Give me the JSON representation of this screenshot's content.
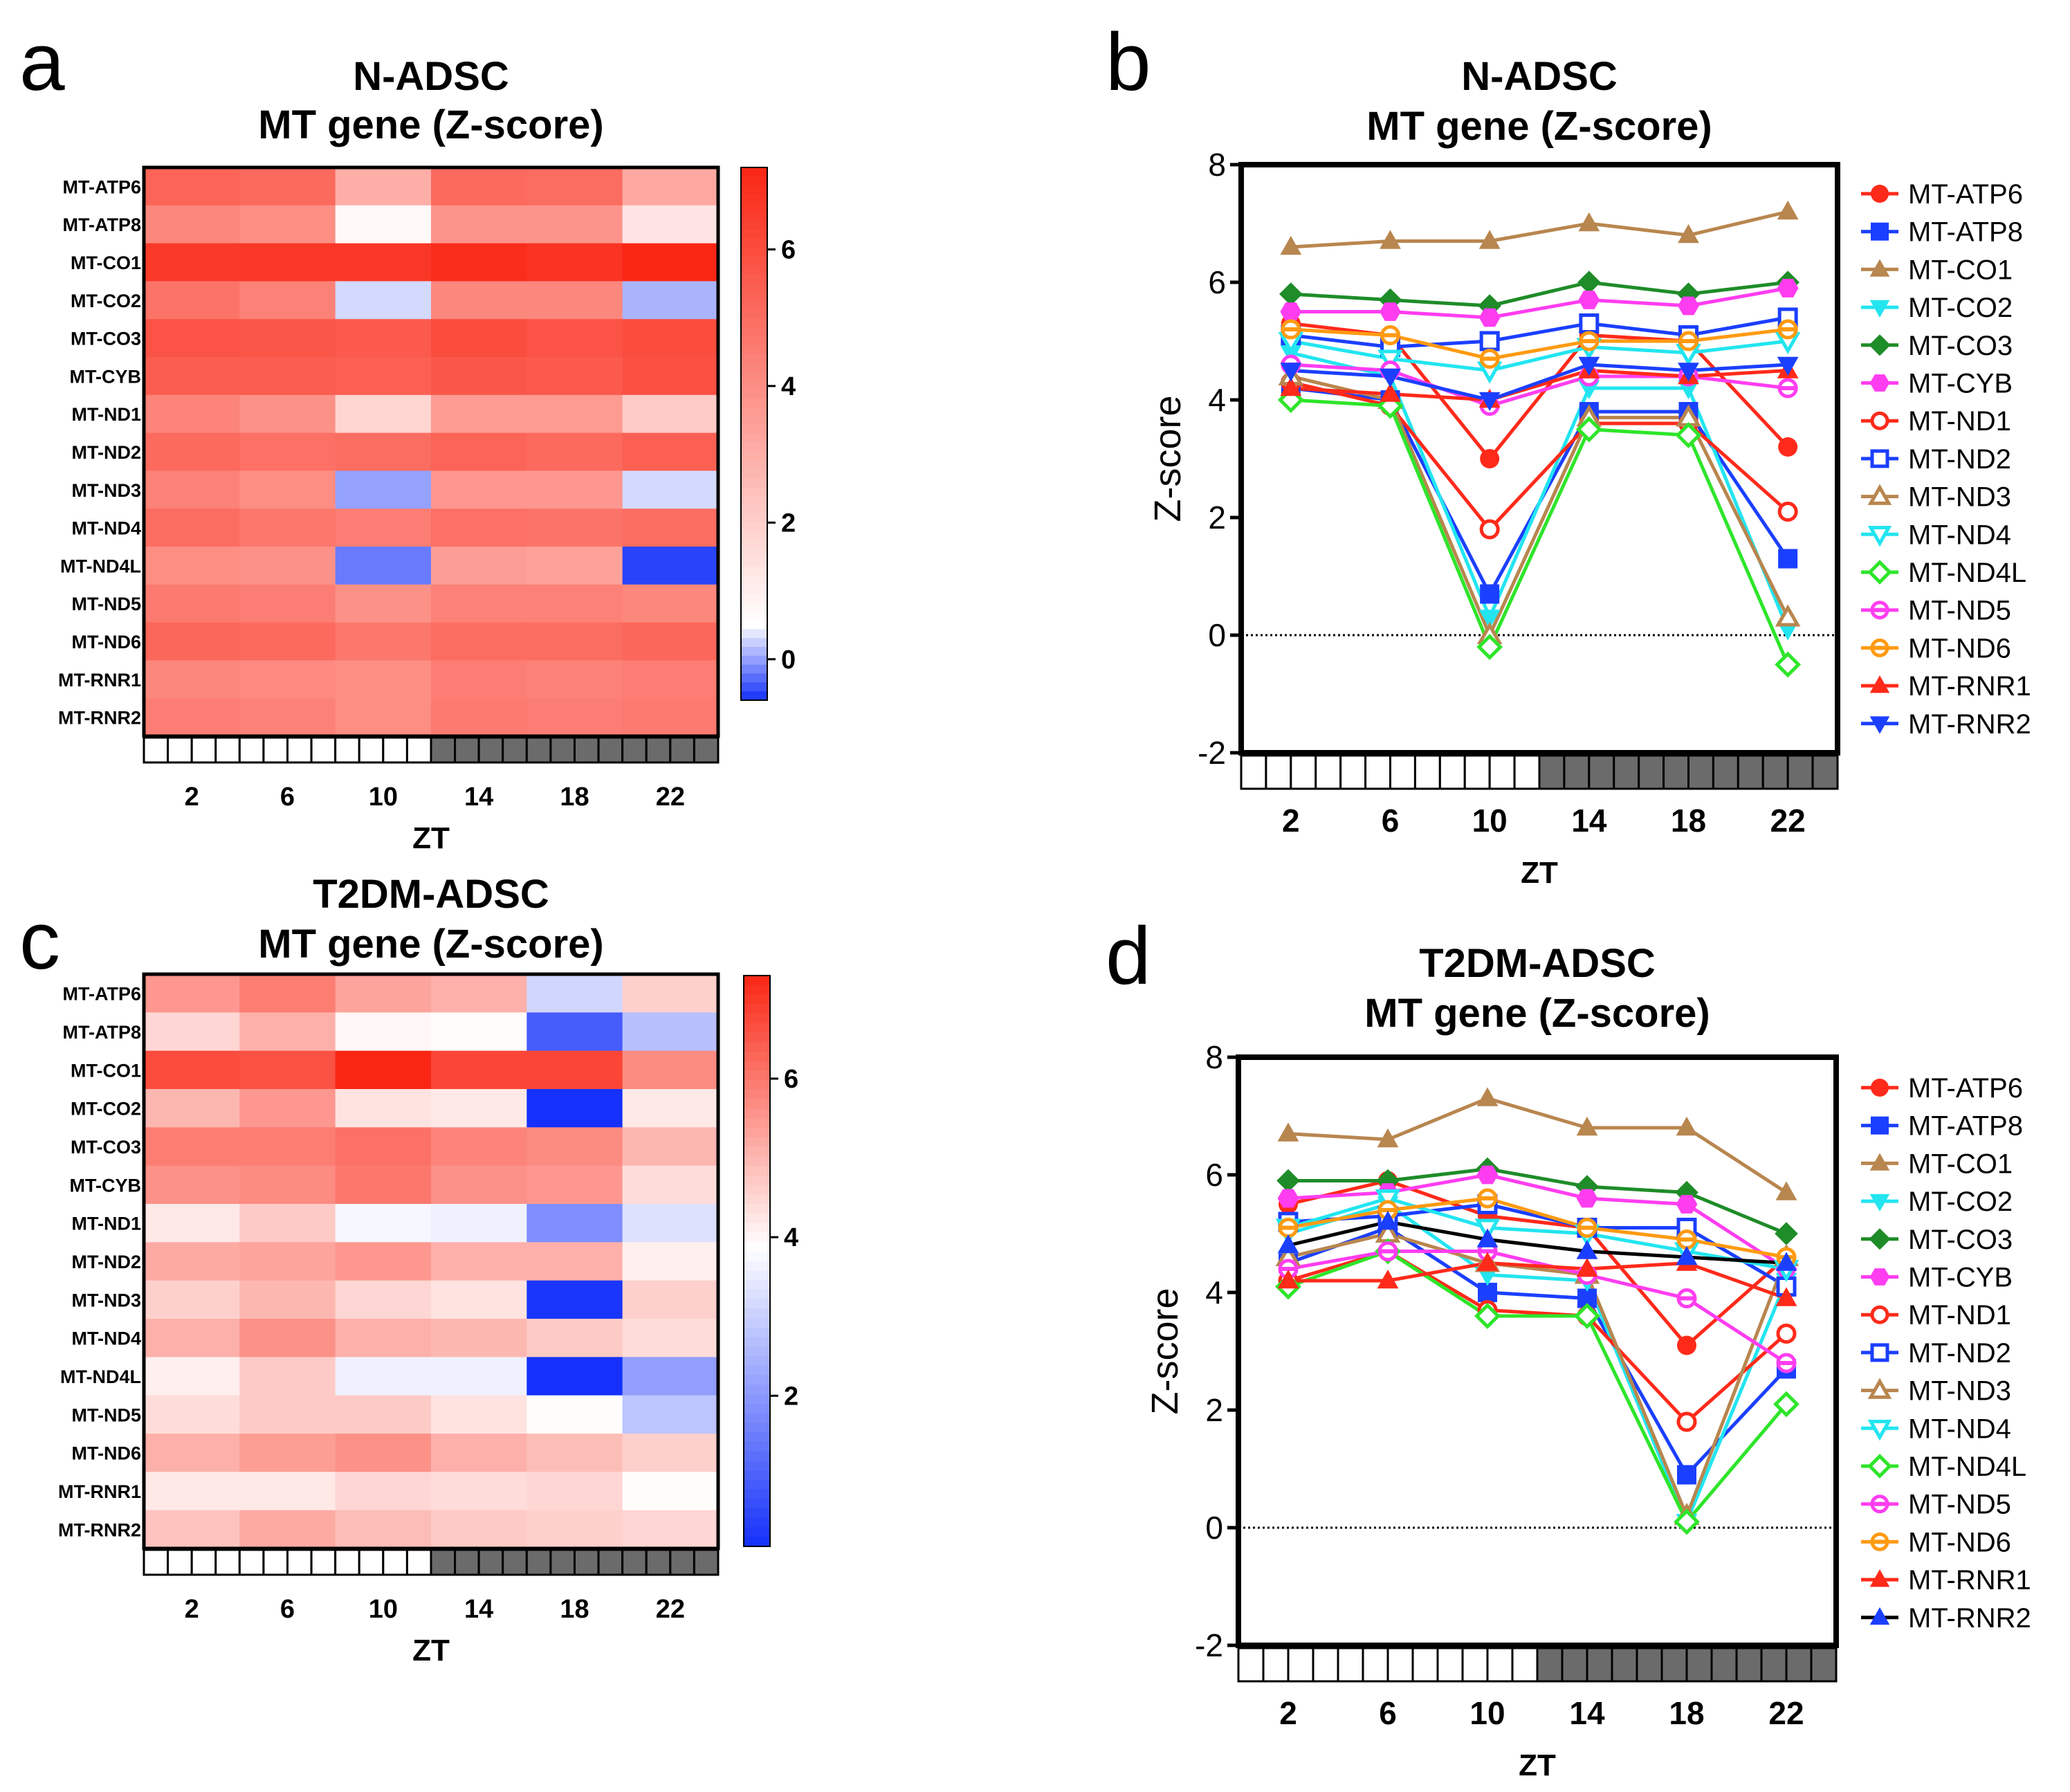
{
  "panels": {
    "a": "a",
    "b": "b",
    "c": "c",
    "d": "d"
  },
  "chart_data": [
    {
      "id": "a",
      "type": "heatmap",
      "title_line1": "N-ADSC",
      "title_line2": "MT gene (Z-score)",
      "xlabel": "ZT",
      "x_ticks": [
        "2",
        "6",
        "10",
        "14",
        "18",
        "22"
      ],
      "rows": [
        "MT-ATP6",
        "MT-ATP8",
        "MT-CO1",
        "MT-CO2",
        "MT-CO3",
        "MT-CYB",
        "MT-ND1",
        "MT-ND2",
        "MT-ND3",
        "MT-ND4",
        "MT-ND4L",
        "MT-ND5",
        "MT-ND6",
        "MT-RNR1",
        "MT-RNR2"
      ],
      "values": [
        [
          5.3,
          5.1,
          3.0,
          5.1,
          5.0,
          3.2
        ],
        [
          4.2,
          4.0,
          0.7,
          3.8,
          3.8,
          1.3
        ],
        [
          6.6,
          6.7,
          6.7,
          7.0,
          6.8,
          7.2
        ],
        [
          4.8,
          4.4,
          0.3,
          4.2,
          4.2,
          0.1
        ],
        [
          5.8,
          5.7,
          5.6,
          6.0,
          5.8,
          6.0
        ],
        [
          5.5,
          5.5,
          5.4,
          5.7,
          5.6,
          5.9
        ],
        [
          4.3,
          3.9,
          1.8,
          3.6,
          3.6,
          2.1
        ],
        [
          5.1,
          4.9,
          5.0,
          5.3,
          5.1,
          5.4
        ],
        [
          4.4,
          4.0,
          0.0,
          3.7,
          3.7,
          0.3
        ],
        [
          5.0,
          4.7,
          4.5,
          4.9,
          4.8,
          5.0
        ],
        [
          4.0,
          3.9,
          -0.2,
          3.5,
          3.4,
          -0.5
        ],
        [
          4.6,
          4.5,
          3.9,
          4.4,
          4.4,
          4.2
        ],
        [
          5.2,
          5.1,
          4.7,
          5.0,
          5.0,
          5.2
        ],
        [
          4.2,
          4.1,
          4.0,
          4.5,
          4.4,
          4.5
        ],
        [
          4.5,
          4.4,
          4.0,
          4.6,
          4.5,
          4.6
        ]
      ],
      "scale": {
        "min": -0.6,
        "max": 7.2,
        "mid": 0.5,
        "ticks": [
          "0",
          "2",
          "4",
          "6"
        ]
      },
      "zt_blocks": {
        "light": 12,
        "dark": 12
      }
    },
    {
      "id": "b",
      "type": "line",
      "title_line1": "N-ADSC",
      "title_line2": "MT gene (Z-score)",
      "xlabel": "ZT",
      "ylabel": "Z-score",
      "x": [
        2,
        6,
        10,
        14,
        18,
        22
      ],
      "x_ticks": [
        "2",
        "6",
        "10",
        "14",
        "18",
        "22"
      ],
      "ylim": [
        -2,
        8
      ],
      "y_ticks": [
        "-2",
        "0",
        "2",
        "4",
        "6",
        "8"
      ],
      "zt_blocks": {
        "light": 12,
        "dark": 12
      },
      "series": [
        {
          "name": "MT-ATP6",
          "color": "#FF2A1A",
          "marker": "circle",
          "values": [
            5.3,
            5.1,
            3.0,
            5.1,
            5.0,
            3.2
          ]
        },
        {
          "name": "MT-ATP8",
          "color": "#1B3FFF",
          "marker": "square",
          "values": [
            4.2,
            4.0,
            0.7,
            3.8,
            3.8,
            1.3
          ]
        },
        {
          "name": "MT-CO1",
          "color": "#B8864F",
          "marker": "triangle",
          "values": [
            6.6,
            6.7,
            6.7,
            7.0,
            6.8,
            7.2
          ]
        },
        {
          "name": "MT-CO2",
          "color": "#22E5F0",
          "marker": "triangle-down",
          "values": [
            4.8,
            4.4,
            0.3,
            4.2,
            4.2,
            0.1
          ]
        },
        {
          "name": "MT-CO3",
          "color": "#1E8C28",
          "marker": "diamond",
          "values": [
            5.8,
            5.7,
            5.6,
            6.0,
            5.8,
            6.0
          ]
        },
        {
          "name": "MT-CYB",
          "color": "#FF3DF0",
          "marker": "hexagon",
          "values": [
            5.5,
            5.5,
            5.4,
            5.7,
            5.6,
            5.9
          ]
        },
        {
          "name": "MT-ND1",
          "color": "#FF2A1A",
          "marker": "circle-open",
          "values": [
            4.3,
            3.9,
            1.8,
            3.6,
            3.6,
            2.1
          ]
        },
        {
          "name": "MT-ND2",
          "color": "#1B3FFF",
          "marker": "square-open",
          "values": [
            5.1,
            4.9,
            5.0,
            5.3,
            5.1,
            5.4
          ]
        },
        {
          "name": "MT-ND3",
          "color": "#B8864F",
          "marker": "triangle-open",
          "values": [
            4.4,
            4.0,
            0.0,
            3.7,
            3.7,
            0.3
          ]
        },
        {
          "name": "MT-ND4",
          "color": "#22E5F0",
          "marker": "triangle-down-open",
          "values": [
            5.0,
            4.7,
            4.5,
            4.9,
            4.8,
            5.0
          ]
        },
        {
          "name": "MT-ND4L",
          "color": "#2EE52A",
          "marker": "diamond-open",
          "values": [
            4.0,
            3.9,
            -0.2,
            3.5,
            3.4,
            -0.5
          ]
        },
        {
          "name": "MT-ND5",
          "color": "#FF3DF0",
          "marker": "half-circle",
          "values": [
            4.6,
            4.5,
            3.9,
            4.4,
            4.4,
            4.2
          ]
        },
        {
          "name": "MT-ND6",
          "color": "#FF9A12",
          "marker": "half-circle",
          "values": [
            5.2,
            5.1,
            4.7,
            5.0,
            5.0,
            5.2
          ]
        },
        {
          "name": "MT-RNR1",
          "color": "#FF2A1A",
          "marker": "triangle",
          "values": [
            4.2,
            4.1,
            4.0,
            4.5,
            4.4,
            4.5
          ]
        },
        {
          "name": "MT-RNR2",
          "color": "#1B3FFF",
          "marker": "triangle-down",
          "values": [
            4.5,
            4.4,
            4.0,
            4.6,
            4.5,
            4.6
          ]
        }
      ]
    },
    {
      "id": "c",
      "type": "heatmap",
      "title_line1": "T2DM-ADSC",
      "title_line2": "MT gene (Z-score)",
      "xlabel": "ZT",
      "x_ticks": [
        "2",
        "6",
        "10",
        "14",
        "18",
        "22"
      ],
      "rows": [
        "MT-ATP6",
        "MT-ATP8",
        "MT-CO1",
        "MT-CO2",
        "MT-CO3",
        "MT-CYB",
        "MT-ND1",
        "MT-ND2",
        "MT-ND3",
        "MT-ND4",
        "MT-ND4L",
        "MT-ND5",
        "MT-ND6",
        "MT-RNR1",
        "MT-RNR2"
      ],
      "values": [
        [
          5.5,
          5.9,
          5.3,
          5.1,
          3.1,
          4.6
        ],
        [
          4.5,
          5.1,
          4.0,
          3.9,
          0.9,
          2.7
        ],
        [
          6.7,
          6.6,
          7.3,
          6.8,
          6.8,
          5.7
        ],
        [
          5.0,
          5.5,
          4.3,
          4.2,
          0.1,
          4.2
        ],
        [
          5.9,
          5.9,
          6.1,
          5.8,
          5.7,
          5.0
        ],
        [
          5.6,
          5.7,
          6.0,
          5.6,
          5.5,
          4.4
        ],
        [
          4.2,
          4.7,
          3.7,
          3.6,
          1.8,
          3.3
        ],
        [
          5.2,
          5.3,
          5.5,
          5.1,
          5.1,
          4.1
        ],
        [
          4.6,
          5.0,
          4.5,
          4.3,
          0.2,
          4.6
        ],
        [
          5.1,
          5.6,
          5.1,
          5.0,
          4.7,
          4.4
        ],
        [
          4.1,
          4.7,
          3.6,
          3.6,
          0.1,
          2.1
        ],
        [
          4.4,
          4.7,
          4.7,
          4.3,
          3.9,
          2.8
        ],
        [
          5.1,
          5.4,
          5.6,
          5.1,
          4.9,
          4.6
        ],
        [
          4.2,
          4.2,
          4.5,
          4.4,
          4.5,
          3.9
        ],
        [
          4.8,
          5.2,
          4.9,
          4.7,
          4.6,
          4.5
        ]
      ],
      "scale": {
        "min": 0.1,
        "max": 7.3,
        "mid": 3.85,
        "ticks": [
          "2",
          "4",
          "6"
        ]
      },
      "zt_blocks": {
        "light": 12,
        "dark": 12
      }
    },
    {
      "id": "d",
      "type": "line",
      "title_line1": "T2DM-ADSC",
      "title_line2": "MT gene (Z-score)",
      "xlabel": "ZT",
      "ylabel": "Z-score",
      "x": [
        2,
        6,
        10,
        14,
        18,
        22
      ],
      "x_ticks": [
        "2",
        "6",
        "10",
        "14",
        "18",
        "22"
      ],
      "ylim": [
        -2,
        8
      ],
      "y_ticks": [
        "-2",
        "0",
        "2",
        "4",
        "6",
        "8"
      ],
      "zt_blocks": {
        "light": 12,
        "dark": 12
      },
      "series": [
        {
          "name": "MT-ATP6",
          "color": "#FF2A1A",
          "marker": "circle",
          "values": [
            5.5,
            5.9,
            5.3,
            5.1,
            3.1,
            4.6
          ]
        },
        {
          "name": "MT-ATP8",
          "color": "#1B3FFF",
          "marker": "square",
          "values": [
            4.5,
            5.1,
            4.0,
            3.9,
            0.9,
            2.7
          ]
        },
        {
          "name": "MT-CO1",
          "color": "#B8864F",
          "marker": "triangle",
          "values": [
            6.7,
            6.6,
            7.3,
            6.8,
            6.8,
            5.7
          ]
        },
        {
          "name": "MT-CO2",
          "color": "#22E5F0",
          "marker": "triangle-down",
          "values": [
            5.0,
            5.5,
            4.3,
            4.2,
            0.1,
            4.2
          ]
        },
        {
          "name": "MT-CO3",
          "color": "#1E8C28",
          "marker": "diamond",
          "values": [
            5.9,
            5.9,
            6.1,
            5.8,
            5.7,
            5.0
          ]
        },
        {
          "name": "MT-CYB",
          "color": "#FF3DF0",
          "marker": "hexagon",
          "values": [
            5.6,
            5.7,
            6.0,
            5.6,
            5.5,
            4.4
          ]
        },
        {
          "name": "MT-ND1",
          "color": "#FF2A1A",
          "marker": "circle-open",
          "values": [
            4.2,
            4.7,
            3.7,
            3.6,
            1.8,
            3.3
          ]
        },
        {
          "name": "MT-ND2",
          "color": "#1B3FFF",
          "marker": "square-open",
          "values": [
            5.2,
            5.3,
            5.5,
            5.1,
            5.1,
            4.1
          ]
        },
        {
          "name": "MT-ND3",
          "color": "#B8864F",
          "marker": "triangle-open",
          "values": [
            4.6,
            5.0,
            4.5,
            4.3,
            0.2,
            4.6
          ]
        },
        {
          "name": "MT-ND4",
          "color": "#22E5F0",
          "marker": "triangle-down-open",
          "values": [
            5.1,
            5.6,
            5.1,
            5.0,
            4.7,
            4.4
          ]
        },
        {
          "name": "MT-ND4L",
          "color": "#2EE52A",
          "marker": "diamond-open",
          "values": [
            4.1,
            4.7,
            3.6,
            3.6,
            0.1,
            2.1
          ]
        },
        {
          "name": "MT-ND5",
          "color": "#FF3DF0",
          "marker": "half-circle",
          "values": [
            4.4,
            4.7,
            4.7,
            4.3,
            3.9,
            2.8
          ]
        },
        {
          "name": "MT-ND6",
          "color": "#FF9A12",
          "marker": "half-circle",
          "values": [
            5.1,
            5.4,
            5.6,
            5.1,
            4.9,
            4.6
          ]
        },
        {
          "name": "MT-RNR1",
          "color": "#FF2A1A",
          "marker": "triangle",
          "values": [
            4.2,
            4.2,
            4.5,
            4.4,
            4.5,
            3.9
          ]
        },
        {
          "name": "MT-RNR2",
          "color": "#000000",
          "marker": "triangle-blue",
          "values": [
            4.8,
            5.2,
            4.9,
            4.7,
            4.6,
            4.5
          ]
        }
      ]
    }
  ]
}
